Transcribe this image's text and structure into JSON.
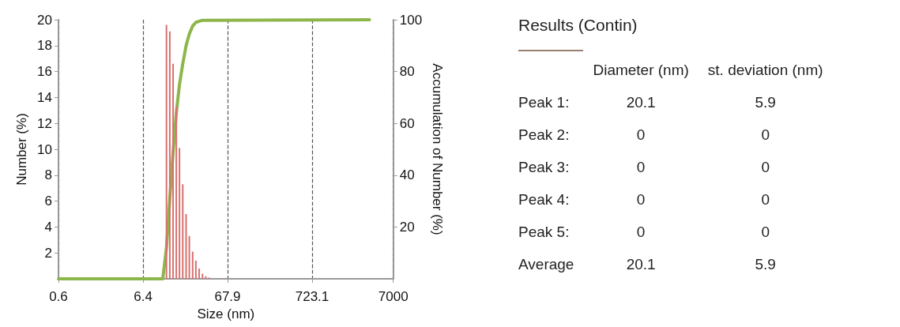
{
  "chart_data": [
    {
      "type": "bar",
      "xlabel": "Size (nm)",
      "ylabel": "Number (%)",
      "y2label": "Accumulation of Number (%)",
      "log": "x",
      "grid": "x",
      "xlim": [
        0.6,
        7000
      ],
      "xticks": [
        0.6,
        6.4,
        67.9,
        723.1,
        7000
      ],
      "ylim": [
        0,
        20
      ],
      "yticks": [
        2,
        4,
        6,
        8,
        10,
        12,
        14,
        16,
        18,
        20
      ],
      "y2lim": [
        0,
        100
      ],
      "y2ticks": [
        20,
        40,
        60,
        80,
        100
      ],
      "series": [
        {
          "color": "#d9706f",
          "x": [
            12.3,
            13.5,
            14.8,
            16.2,
            17.7,
            19.4,
            21.3,
            23.3,
            25.6,
            28.0,
            30.7,
            33.7,
            36.9,
            40.4
          ],
          "values": [
            19.6,
            19.1,
            16.6,
            13.3,
            10.1,
            7.3,
            5.0,
            3.3,
            2.1,
            1.4,
            0.8,
            0.4,
            0.2,
            0.1
          ]
        },
        {
          "type": "line",
          "axis": "y2",
          "color": "#8db64a",
          "x": [
            0.6,
            11.1,
            12.3,
            13.5,
            14.8,
            16.2,
            17.7,
            19.4,
            21.3,
            23.3,
            25.6,
            28.0,
            33.7,
            3600
          ],
          "values": [
            0,
            0,
            12,
            31,
            49,
            64,
            75,
            83,
            90,
            94.5,
            97.6,
            99,
            99.8,
            100
          ]
        }
      ]
    },
    {
      "type": "other",
      "title": "Results (Contin)",
      "categories": [
        "Diameter (nm)",
        "st. deviation (nm)"
      ],
      "y_categories": [
        "Peak 1:",
        "Peak 2:",
        "Peak 3:",
        "Peak 4:",
        "Peak 5:",
        "Average"
      ],
      "cell_labels": [
        [
          "20.1",
          "5.9"
        ],
        [
          "0",
          "0"
        ],
        [
          "0",
          "0"
        ],
        [
          "0",
          "0"
        ],
        [
          "0",
          "0"
        ],
        [
          "20.1",
          "5.9"
        ]
      ]
    }
  ]
}
